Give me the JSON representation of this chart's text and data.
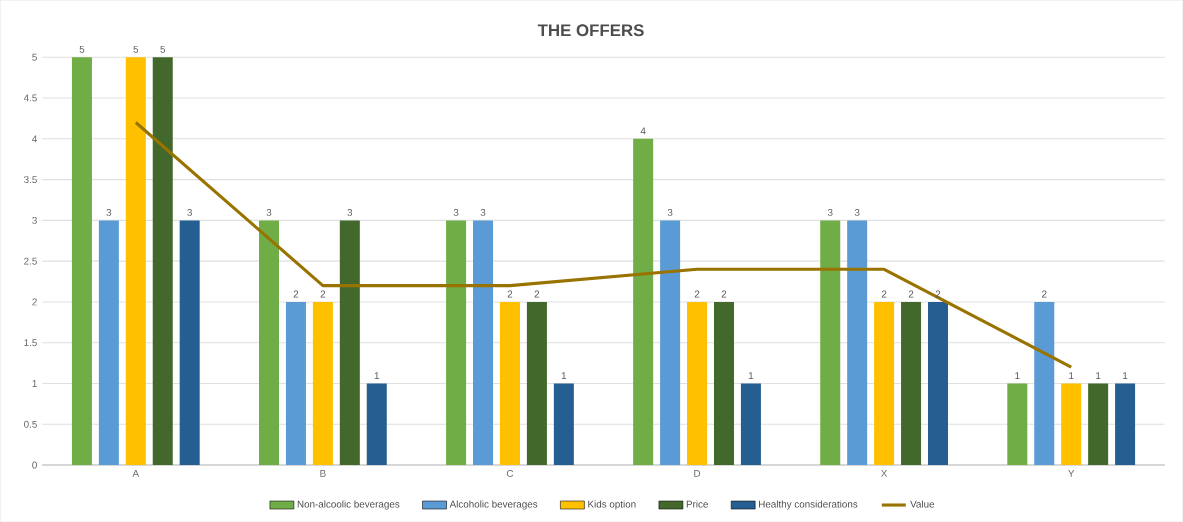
{
  "chart_data": {
    "type": "bar",
    "title": "THE OFFERS",
    "categories": [
      "A",
      "B",
      "C",
      "D",
      "X",
      "Y"
    ],
    "series": [
      {
        "name": "Non-alcoolic beverages",
        "color": "#70ad47",
        "values": [
          5,
          3,
          3,
          4,
          3,
          1
        ],
        "value_labels": [
          "5",
          "3",
          "3",
          "4",
          "3",
          "1"
        ]
      },
      {
        "name": "Alcoholic beverages",
        "color": "#5b9bd5",
        "values": [
          3,
          2,
          3,
          3,
          3,
          2
        ],
        "value_labels": [
          "3",
          "2",
          "3",
          "3",
          "3",
          "2"
        ]
      },
      {
        "name": "Kids option",
        "color": "#ffc000",
        "values": [
          5,
          2,
          2,
          2,
          2,
          1
        ],
        "value_labels": [
          "5",
          "2",
          "2",
          "2",
          "2",
          "1"
        ]
      },
      {
        "name": "Price",
        "color": "#43682b",
        "values": [
          5,
          3,
          2,
          2,
          2,
          1
        ],
        "value_labels": [
          "5",
          "3",
          "2",
          "2",
          "2",
          "1"
        ]
      },
      {
        "name": "Healthy considerations",
        "color": "#255e91",
        "values": [
          3,
          1,
          1,
          1,
          2,
          1
        ],
        "value_labels": [
          "3",
          "1",
          "1",
          "1",
          "2",
          "1"
        ]
      },
      {
        "name": "Value",
        "type": "line",
        "color": "#997300",
        "values": [
          4.2,
          2.2,
          2.2,
          2.4,
          2.4,
          1.2
        ]
      }
    ],
    "ylim": [
      0,
      5
    ],
    "yticks": [
      0,
      0.5,
      1,
      1.5,
      2,
      2.5,
      3,
      3.5,
      4,
      4.5,
      5
    ],
    "grid": "y",
    "legend": "bottom"
  }
}
